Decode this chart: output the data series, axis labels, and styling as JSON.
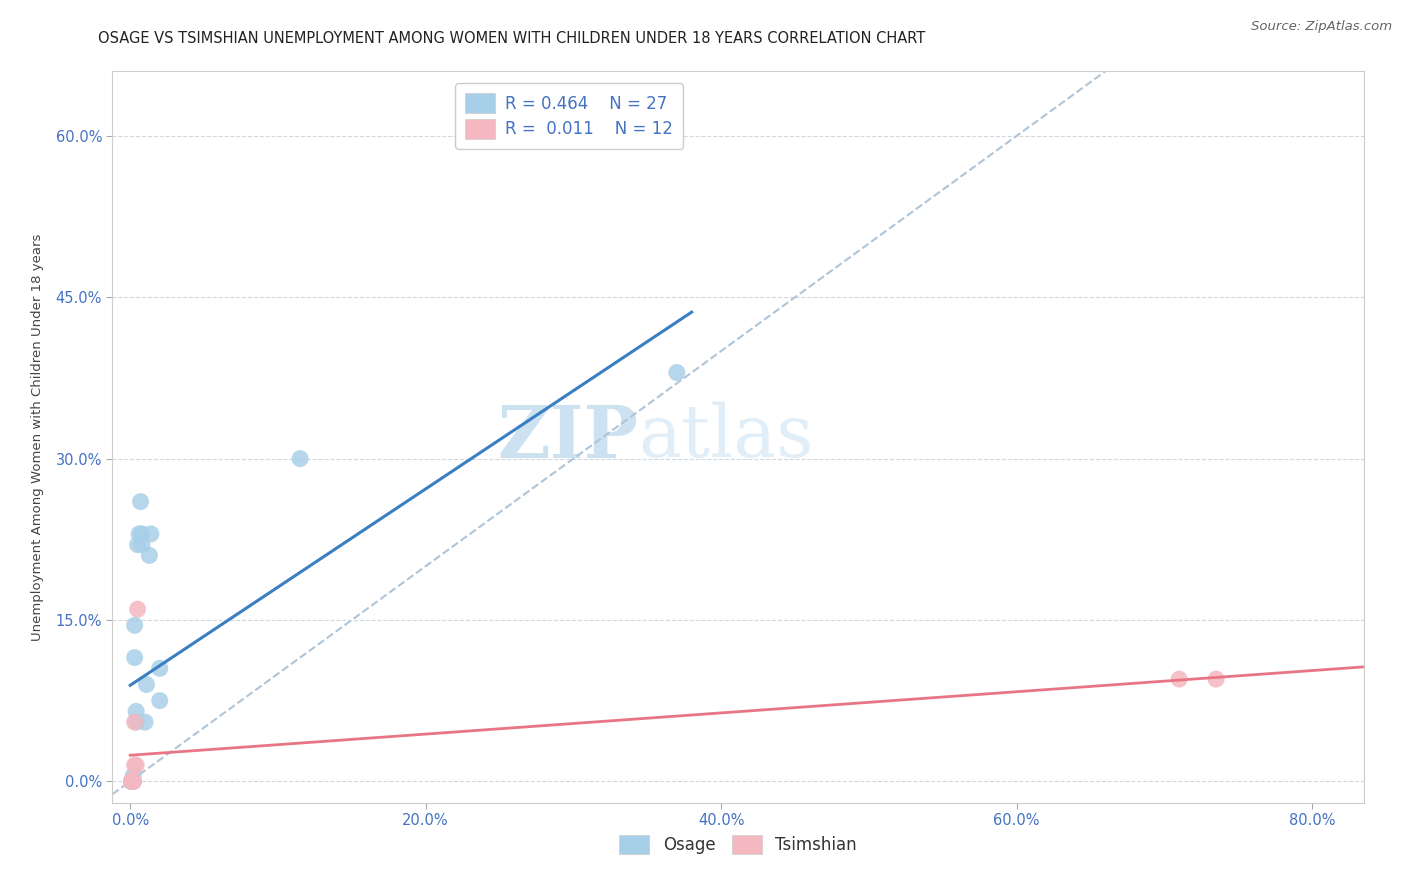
{
  "title": "OSAGE VS TSIMSHIAN UNEMPLOYMENT AMONG WOMEN WITH CHILDREN UNDER 18 YEARS CORRELATION CHART",
  "source": "Source: ZipAtlas.com",
  "ylabel": "Unemployment Among Women with Children Under 18 years",
  "xlabel_ticks": [
    "0.0%",
    "20.0%",
    "40.0%",
    "60.0%",
    "80.0%"
  ],
  "xlabel_vals": [
    0.0,
    0.2,
    0.4,
    0.6,
    0.8
  ],
  "ylabel_ticks": [
    "0.0%",
    "15.0%",
    "30.0%",
    "45.0%",
    "60.0%"
  ],
  "ylabel_vals": [
    0.0,
    0.15,
    0.3,
    0.45,
    0.6
  ],
  "xlim": [
    -0.012,
    0.835
  ],
  "ylim": [
    -0.02,
    0.66
  ],
  "osage_color": "#a8cfe8",
  "tsimshian_color": "#f4b8c1",
  "osage_line_color": "#3a7fc1",
  "tsimshian_line_color": "#e87585",
  "diagonal_color": "#b0c4d8",
  "watermark_zip": "ZIP",
  "watermark_atlas": "atlas",
  "legend_label_osage": "R = 0.464    N = 27",
  "legend_label_tsimshian": "R =  0.011    N = 12",
  "osage_x": [
    0.001,
    0.001,
    0.001,
    0.001,
    0.001,
    0.002,
    0.002,
    0.002,
    0.002,
    0.002,
    0.003,
    0.003,
    0.004,
    0.004,
    0.005,
    0.006,
    0.007,
    0.008,
    0.008,
    0.01,
    0.011,
    0.013,
    0.014,
    0.02,
    0.02,
    0.115,
    0.37
  ],
  "osage_y": [
    0.0,
    0.0,
    0.0,
    0.0,
    0.0,
    0.0,
    0.0,
    0.0,
    0.0,
    0.005,
    0.115,
    0.145,
    0.055,
    0.065,
    0.22,
    0.23,
    0.26,
    0.23,
    0.22,
    0.055,
    0.09,
    0.21,
    0.23,
    0.075,
    0.105,
    0.3,
    0.38
  ],
  "tsimshian_x": [
    0.001,
    0.001,
    0.001,
    0.002,
    0.002,
    0.002,
    0.003,
    0.003,
    0.004,
    0.005,
    0.71,
    0.735
  ],
  "tsimshian_y": [
    0.0,
    0.0,
    0.0,
    0.0,
    0.0,
    0.0,
    0.015,
    0.055,
    0.015,
    0.16,
    0.095,
    0.095
  ],
  "background_color": "#ffffff",
  "grid_color": "#d0d8e0",
  "title_fontsize": 10.5,
  "axis_label_fontsize": 9.5,
  "tick_fontsize": 10.5,
  "legend_fontsize": 12,
  "source_fontsize": 9.5,
  "watermark_fontsize_zip": 52,
  "watermark_fontsize_atlas": 52
}
